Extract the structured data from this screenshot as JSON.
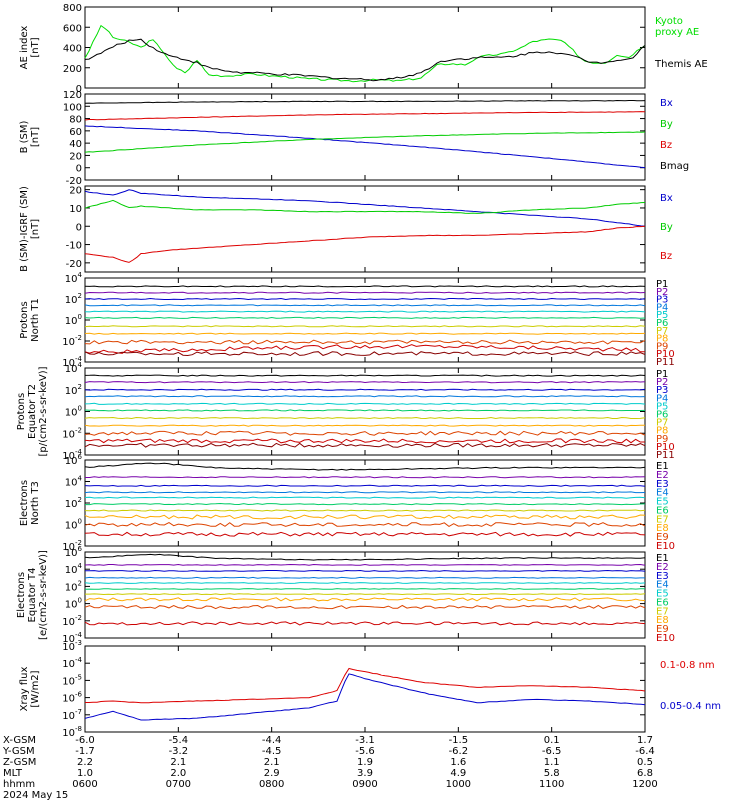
{
  "chart_data": [
    {
      "type": "line",
      "ylabel": [
        "AE index",
        "[nT]"
      ],
      "ylim": [
        0,
        800
      ],
      "yticks": [
        "0",
        "200",
        "400",
        "600",
        "800"
      ],
      "log": false,
      "series": [
        {
          "name": "Kyoto proxy AE",
          "name_lines": [
            "Kyoto",
            "proxy AE"
          ],
          "color": "#00dd00",
          "x": [
            0,
            0.01,
            0.03,
            0.05,
            0.08,
            0.1,
            0.12,
            0.14,
            0.16,
            0.18,
            0.2,
            0.22,
            0.25,
            0.28,
            0.3,
            0.33,
            0.36,
            0.4,
            0.44,
            0.48,
            0.52,
            0.56,
            0.6,
            0.63,
            0.65,
            0.68,
            0.7,
            0.72,
            0.75,
            0.78,
            0.8,
            0.83,
            0.85,
            0.87,
            0.89,
            0.91,
            0.93,
            0.95,
            0.97,
            1.0
          ],
          "y": [
            300,
            400,
            630,
            500,
            450,
            400,
            480,
            360,
            200,
            150,
            280,
            130,
            120,
            130,
            140,
            120,
            110,
            90,
            80,
            70,
            80,
            70,
            100,
            230,
            240,
            230,
            300,
            320,
            340,
            400,
            460,
            480,
            470,
            380,
            270,
            250,
            250,
            330,
            300,
            430
          ]
        },
        {
          "name": "Themis AE",
          "name_lines": [
            "Themis AE"
          ],
          "color": "#000000",
          "x": [
            0,
            0.02,
            0.04,
            0.06,
            0.08,
            0.1,
            0.12,
            0.15,
            0.18,
            0.2,
            0.22,
            0.25,
            0.28,
            0.3,
            0.33,
            0.36,
            0.4,
            0.44,
            0.48,
            0.52,
            0.56,
            0.6,
            0.63,
            0.65,
            0.68,
            0.7,
            0.73,
            0.76,
            0.8,
            0.83,
            0.86,
            0.88,
            0.9,
            0.92,
            0.94,
            0.96,
            0.98,
            1.0
          ],
          "y": [
            280,
            320,
            380,
            430,
            470,
            480,
            400,
            320,
            280,
            250,
            200,
            170,
            150,
            150,
            140,
            130,
            120,
            100,
            90,
            80,
            100,
            150,
            250,
            280,
            290,
            300,
            300,
            310,
            350,
            360,
            330,
            300,
            260,
            250,
            270,
            280,
            300,
            430
          ]
        }
      ]
    },
    {
      "type": "line",
      "ylabel": [
        "B (SM)",
        "[nT]"
      ],
      "ylim": [
        -20,
        120
      ],
      "yticks": [
        "-20",
        "0",
        "20",
        "40",
        "60",
        "80",
        "100",
        "120"
      ],
      "log": false,
      "series": [
        {
          "name": "Bx",
          "color": "#0000cc",
          "x": [
            0,
            0.2,
            0.4,
            0.6,
            0.8,
            1.0
          ],
          "y": [
            68,
            60,
            48,
            34,
            18,
            0
          ]
        },
        {
          "name": "By",
          "color": "#00cc00",
          "x": [
            0,
            0.2,
            0.4,
            0.6,
            0.8,
            1.0
          ],
          "y": [
            25,
            37,
            46,
            52,
            56,
            58
          ]
        },
        {
          "name": "Bz",
          "color": "#dd0000",
          "x": [
            0,
            0.2,
            0.4,
            0.6,
            0.8,
            1.0
          ],
          "y": [
            78,
            82,
            86,
            88,
            90,
            91
          ]
        },
        {
          "name": "Bmag",
          "color": "#000000",
          "x": [
            0,
            0.2,
            0.4,
            0.6,
            0.8,
            1.0
          ],
          "y": [
            105,
            107,
            108,
            108,
            109,
            109
          ]
        }
      ]
    },
    {
      "type": "line",
      "ylabel": [
        "B (SM)-IGRF (SM)",
        "[nT]"
      ],
      "ylim": [
        -25,
        22
      ],
      "yticks": [
        "-20",
        "-10",
        "0",
        "10",
        "20"
      ],
      "log": false,
      "series": [
        {
          "name": "Bx",
          "color": "#0000cc",
          "x": [
            0,
            0.05,
            0.08,
            0.1,
            0.15,
            0.2,
            0.3,
            0.4,
            0.5,
            0.6,
            0.7,
            0.8,
            0.9,
            0.95,
            1.0
          ],
          "y": [
            19,
            17,
            20,
            18,
            17,
            16,
            15,
            14,
            12,
            10,
            8,
            6,
            4,
            2,
            0
          ]
        },
        {
          "name": "By",
          "color": "#00cc00",
          "x": [
            0,
            0.05,
            0.08,
            0.1,
            0.15,
            0.2,
            0.3,
            0.4,
            0.5,
            0.6,
            0.7,
            0.8,
            0.9,
            0.95,
            1.0
          ],
          "y": [
            10,
            14,
            10,
            11,
            10,
            9,
            9,
            8,
            8,
            8,
            7,
            9,
            10,
            12,
            13
          ]
        },
        {
          "name": "Bz",
          "color": "#dd0000",
          "x": [
            0,
            0.05,
            0.08,
            0.1,
            0.15,
            0.2,
            0.3,
            0.4,
            0.5,
            0.6,
            0.7,
            0.8,
            0.9,
            0.95,
            1.0
          ],
          "y": [
            -15,
            -17,
            -20,
            -15,
            -13,
            -12,
            -10,
            -8,
            -6,
            -5,
            -5,
            -4,
            -3,
            -1,
            0
          ]
        }
      ]
    },
    {
      "type": "line",
      "ylabel": [
        "Protons",
        "North T1"
      ],
      "log": true,
      "ylim": [
        -4,
        4
      ],
      "yticks": [
        "10-4",
        "10-2",
        "100",
        "102",
        "104"
      ],
      "labels": [
        "P1",
        "P2",
        "P3",
        "P4",
        "P5",
        "P6",
        "P7",
        "P8",
        "P9",
        "P10",
        "P11"
      ],
      "levels": [
        3.2,
        2.6,
        2.0,
        1.4,
        0.8,
        0.2,
        -0.6,
        -1.3,
        -2.1,
        -2.8,
        -3.2
      ],
      "colors": [
        "#000000",
        "#7700aa",
        "#0000cc",
        "#0077dd",
        "#00cccc",
        "#00cc66",
        "#cccc00",
        "#ffaa00",
        "#dd4400",
        "#cc0000",
        "#880000"
      ]
    },
    {
      "type": "line",
      "ylabel": [
        "Protons",
        "Equator T2",
        "[p/(cm2-s-sr-keV)]"
      ],
      "log": true,
      "ylim": [
        -4,
        4
      ],
      "yticks": [
        "10-4",
        "10-2",
        "100",
        "102",
        "104"
      ],
      "labels": [
        "P1",
        "P2",
        "P3",
        "P4",
        "P5",
        "P6",
        "P7",
        "P8",
        "P9",
        "P10",
        "P11"
      ],
      "levels": [
        3.3,
        2.7,
        2.0,
        1.4,
        0.7,
        0.1,
        -0.6,
        -1.3,
        -2.0,
        -2.7,
        -3.1
      ],
      "colors": [
        "#000000",
        "#7700aa",
        "#0000cc",
        "#0077dd",
        "#00cccc",
        "#00cc66",
        "#cccc00",
        "#ffaa00",
        "#dd4400",
        "#cc0000",
        "#880000"
      ]
    },
    {
      "type": "line",
      "ylabel": [
        "Electrons",
        "North T3"
      ],
      "log": true,
      "ylim": [
        -2,
        6
      ],
      "yticks": [
        "10-2",
        "100",
        "102",
        "104",
        "106"
      ],
      "labels": [
        "E1",
        "E2",
        "E3",
        "E4",
        "E5",
        "E6",
        "E7",
        "E8",
        "E9",
        "E10"
      ],
      "levels": [
        5.3,
        4.4,
        3.6,
        3.0,
        2.5,
        1.9,
        1.3,
        0.7,
        0.0,
        -0.9
      ],
      "colors": [
        "#000000",
        "#7700aa",
        "#0000cc",
        "#0077dd",
        "#00cccc",
        "#00cc66",
        "#cccc00",
        "#ffaa00",
        "#dd4400",
        "#cc0000"
      ]
    },
    {
      "type": "line",
      "ylabel": [
        "Electrons",
        "Equator T4",
        "[e/(cm2-s-sr-keV)]"
      ],
      "log": true,
      "ylim": [
        -4,
        6
      ],
      "yticks": [
        "10-4",
        "10-2",
        "100",
        "102",
        "104",
        "106"
      ],
      "labels": [
        "E1",
        "E2",
        "E3",
        "E4",
        "E5",
        "E6",
        "E7",
        "E8",
        "E9",
        "E10"
      ],
      "levels": [
        5.3,
        4.5,
        3.8,
        3.0,
        2.4,
        1.7,
        1.1,
        0.5,
        -0.4,
        -2.3
      ],
      "colors": [
        "#000000",
        "#7700aa",
        "#0000cc",
        "#0077dd",
        "#00cccc",
        "#00cc66",
        "#cccc00",
        "#ffaa00",
        "#dd4400",
        "#cc0000"
      ]
    },
    {
      "type": "line",
      "ylabel": [
        "Xray flux",
        "[W/m2]"
      ],
      "log": true,
      "ylim": [
        -8,
        -3
      ],
      "yticks": [
        "10-8",
        "10-7",
        "10-6",
        "10-5",
        "10-4",
        "10-3"
      ],
      "series": [
        {
          "name": "0.1-0.8 nm",
          "color": "#dd0000",
          "x": [
            0,
            0.05,
            0.1,
            0.2,
            0.3,
            0.4,
            0.45,
            0.47,
            0.5,
            0.55,
            0.6,
            0.7,
            0.8,
            0.9,
            1.0
          ],
          "y": [
            -6.3,
            -6.2,
            -6.3,
            -6.2,
            -6.1,
            -6.0,
            -5.6,
            -4.3,
            -4.5,
            -4.8,
            -5.1,
            -5.4,
            -5.3,
            -5.4,
            -5.6
          ]
        },
        {
          "name": "0.05-0.4 nm",
          "color": "#0000cc",
          "x": [
            0,
            0.05,
            0.1,
            0.2,
            0.3,
            0.4,
            0.45,
            0.47,
            0.5,
            0.55,
            0.6,
            0.7,
            0.8,
            0.9,
            1.0
          ],
          "y": [
            -7.2,
            -6.8,
            -7.3,
            -7.2,
            -6.9,
            -6.6,
            -6.2,
            -4.6,
            -4.9,
            -5.3,
            -5.7,
            -6.3,
            -6.1,
            -6.2,
            -6.4
          ]
        }
      ]
    }
  ],
  "axis_table": {
    "rows": [
      {
        "label": "X-GSM",
        "values": [
          "-6.0",
          "-5.4",
          "-4.4",
          "-3.1",
          "-1.5",
          "0.1",
          "1.7"
        ]
      },
      {
        "label": "Y-GSM",
        "values": [
          "-1.7",
          "-3.2",
          "-4.5",
          "-5.6",
          "-6.2",
          "-6.5",
          "-6.4"
        ]
      },
      {
        "label": "Z-GSM",
        "values": [
          "2.2",
          "2.1",
          "2.1",
          "1.9",
          "1.6",
          "1.1",
          "0.5"
        ]
      },
      {
        "label": "MLT",
        "values": [
          "1.0",
          "2.0",
          "2.9",
          "3.9",
          "4.9",
          "5.8",
          "6.8"
        ]
      },
      {
        "label": "hhmm",
        "values": [
          "0600",
          "0700",
          "0800",
          "0900",
          "1000",
          "1100",
          "1200"
        ]
      }
    ],
    "date": "2024 May 15"
  }
}
